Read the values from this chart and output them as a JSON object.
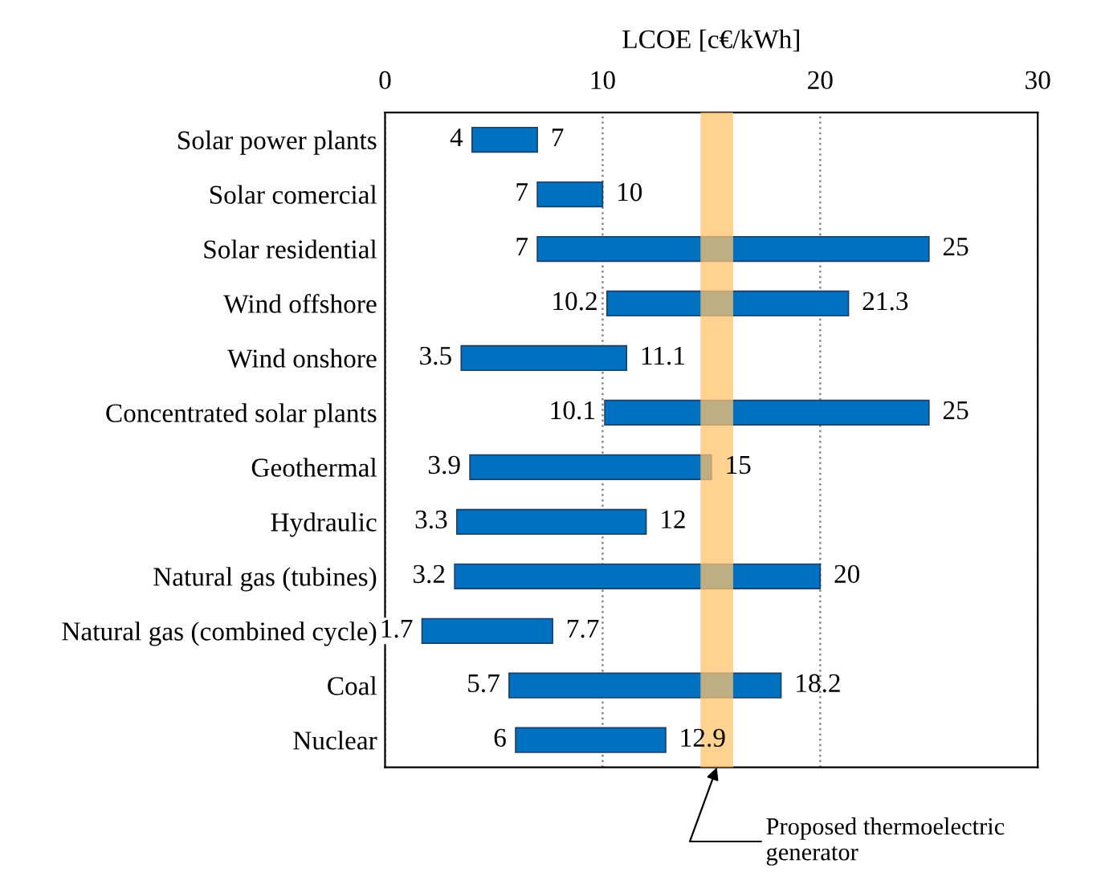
{
  "chart_data": {
    "type": "bar",
    "orientation": "horizontal",
    "xlabel": "LCOE [c€/kWh]",
    "categories": [
      "Solar power plants",
      "Solar comercial",
      "Solar residential",
      "Wind offshore",
      "Wind onshore",
      "Concentrated solar plants",
      "Geothermal",
      "Hydraulic",
      "Natural gas (tubines)",
      "Natural gas (combined cycle)",
      "Coal",
      "Nuclear"
    ],
    "base": [
      4,
      7,
      7,
      10.2,
      3.5,
      10.1,
      3.9,
      3.3,
      3.2,
      1.7,
      5.7,
      6
    ],
    "values": [
      3,
      3,
      18,
      11.1,
      7.6,
      14.9,
      11.1,
      8.7,
      16.8,
      6,
      12.5,
      6.9
    ],
    "color": "#0070c0",
    "xlim": [
      0,
      30
    ],
    "xticks": [
      0,
      10,
      20,
      30
    ],
    "grid": "x",
    "bands": [
      {
        "axis": "x",
        "from": 14.5,
        "to": 16,
        "label": "Proposed thermoelectric generator",
        "color": "#ffc36e"
      }
    ],
    "annotations": [
      {
        "text": "4",
        "x": 4,
        "y": "Solar power plants"
      },
      {
        "text": "7",
        "x": 7,
        "y": "Solar power plants"
      },
      {
        "text": "7",
        "x": 7,
        "y": "Solar comercial"
      },
      {
        "text": "10",
        "x": 10,
        "y": "Solar comercial"
      },
      {
        "text": "7",
        "x": 7,
        "y": "Solar residential"
      },
      {
        "text": "25",
        "x": 25,
        "y": "Solar residential"
      },
      {
        "text": "10.2",
        "x": 10.2,
        "y": "Wind offshore"
      },
      {
        "text": "21.3",
        "x": 21.3,
        "y": "Wind offshore"
      },
      {
        "text": "3.5",
        "x": 3.5,
        "y": "Wind onshore"
      },
      {
        "text": "11.1",
        "x": 11.1,
        "y": "Wind onshore"
      },
      {
        "text": "10.1",
        "x": 10.1,
        "y": "Concentrated solar plants"
      },
      {
        "text": "25",
        "x": 25,
        "y": "Concentrated solar plants"
      },
      {
        "text": "3.9",
        "x": 3.9,
        "y": "Geothermal"
      },
      {
        "text": "15",
        "x": 15,
        "y": "Geothermal"
      },
      {
        "text": "3.3",
        "x": 3.3,
        "y": "Hydraulic"
      },
      {
        "text": "12",
        "x": 12,
        "y": "Hydraulic"
      },
      {
        "text": "3.2",
        "x": 3.2,
        "y": "Natural gas (tubines)"
      },
      {
        "text": "20",
        "x": 20,
        "y": "Natural gas (tubines)"
      },
      {
        "text": "1.7",
        "x": 1.7,
        "y": "Natural gas (combined cycle)"
      },
      {
        "text": "7.7",
        "x": 7.7,
        "y": "Natural gas (combined cycle)"
      },
      {
        "text": "5.7",
        "x": 5.7,
        "y": "Coal"
      },
      {
        "text": "18.2",
        "x": 18.2,
        "y": "Coal"
      },
      {
        "text": "6",
        "x": 6,
        "y": "Nuclear"
      },
      {
        "text": "12.9",
        "x": 12.9,
        "y": "Nuclear"
      }
    ]
  }
}
